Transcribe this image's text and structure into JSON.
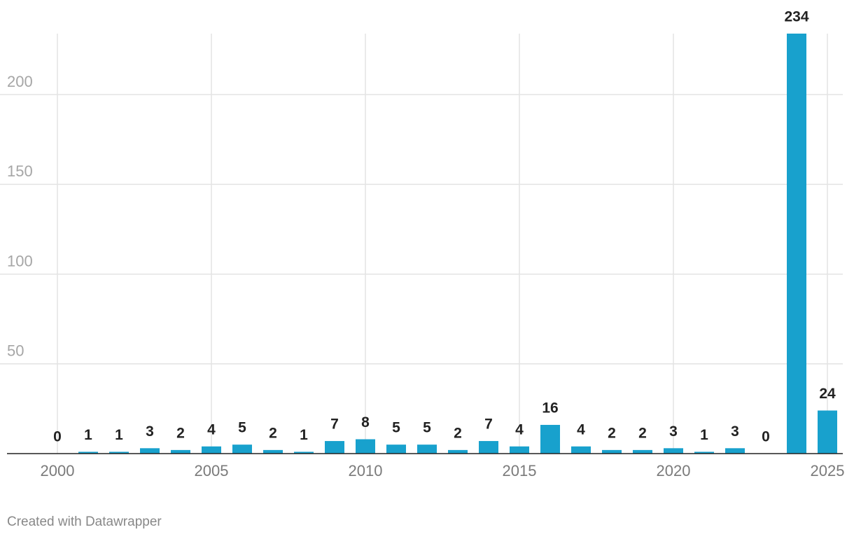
{
  "chart_data": {
    "type": "bar",
    "x": [
      2000,
      2001,
      2002,
      2003,
      2004,
      2005,
      2006,
      2007,
      2008,
      2009,
      2010,
      2011,
      2012,
      2013,
      2014,
      2015,
      2016,
      2017,
      2018,
      2019,
      2020,
      2021,
      2022,
      2023,
      2024,
      2025
    ],
    "values": [
      0,
      1,
      1,
      3,
      2,
      4,
      5,
      2,
      1,
      7,
      8,
      5,
      5,
      2,
      7,
      4,
      16,
      4,
      2,
      2,
      3,
      1,
      3,
      0,
      234,
      24
    ],
    "color": "#18a1cd",
    "xlim": [
      2000,
      2025
    ],
    "xticks": [
      2000,
      2005,
      2010,
      2015,
      2020,
      2025
    ],
    "ylim": [
      0,
      234
    ],
    "yticks": [
      50,
      100,
      150,
      200
    ],
    "grid": true,
    "show_value_labels": true,
    "source": "Created with Datawrapper"
  }
}
